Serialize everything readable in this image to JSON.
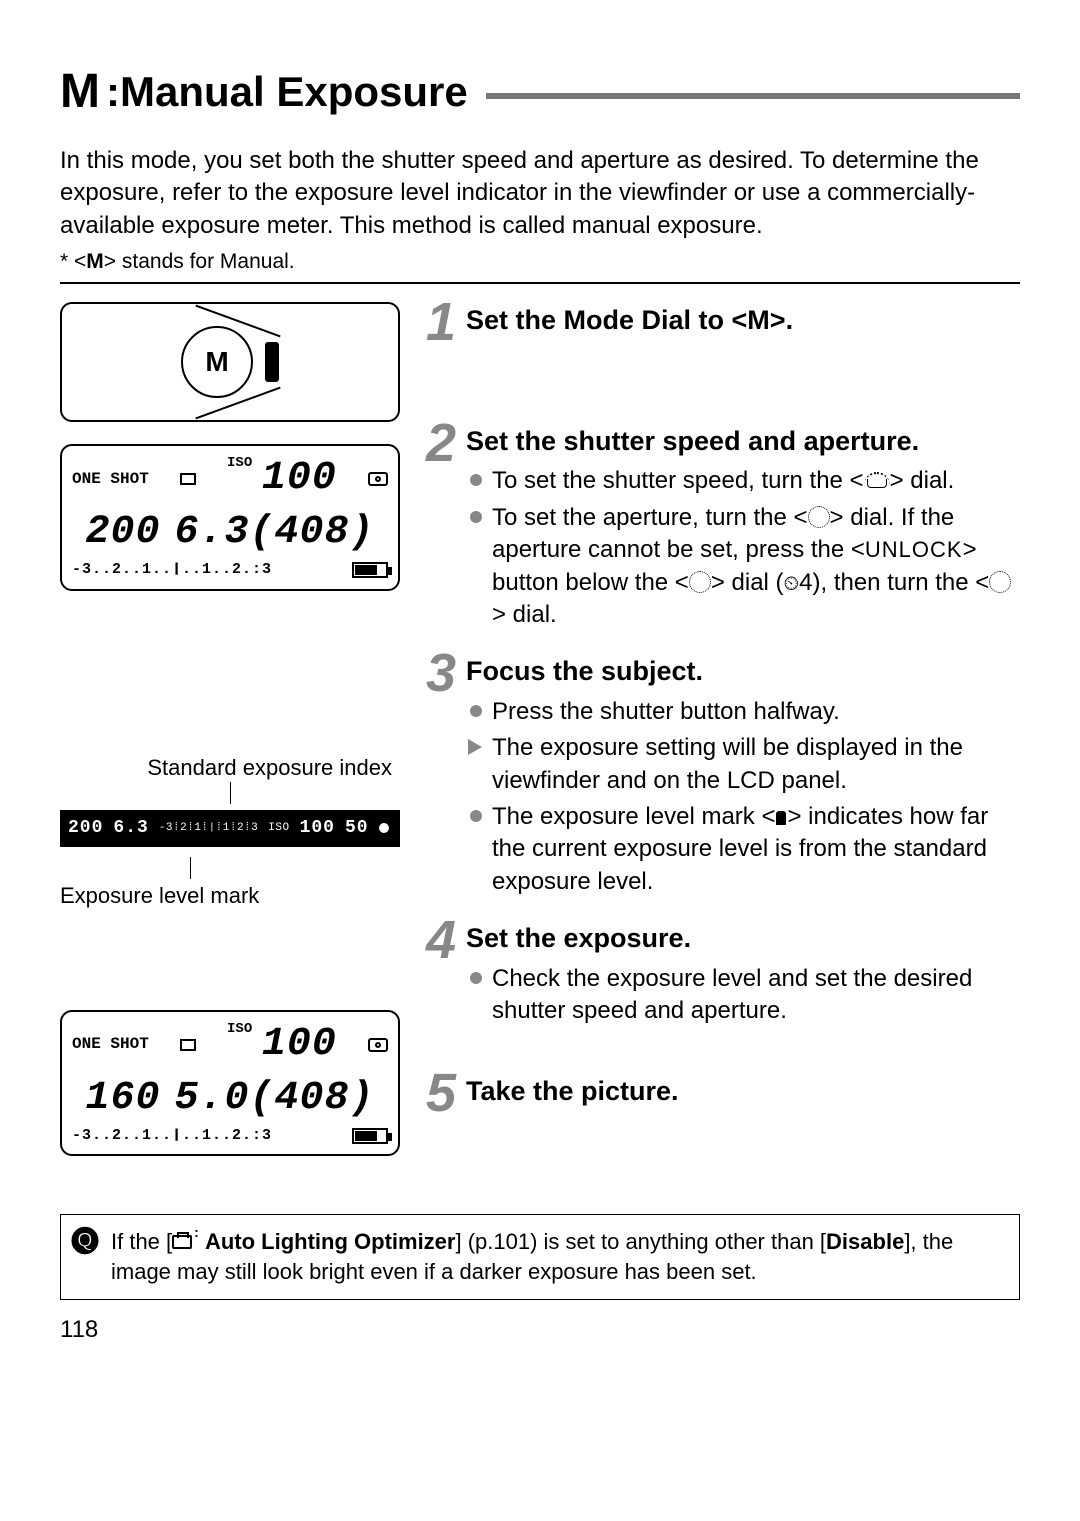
{
  "title": {
    "mode_symbol": "M",
    "separator": ": ",
    "text": "Manual Exposure"
  },
  "intro": "In this mode, you set both the shutter speed and aperture as desired. To determine the exposure, refer to the exposure level indicator in the viewfinder or use a commercially-available exposure meter. This method is called manual exposure.",
  "footnote": {
    "prefix": "* <",
    "symbol": "M",
    "suffix": "> stands for Manual."
  },
  "fig": {
    "dial_letter": "M",
    "lcd1": {
      "af_mode": "ONE SHOT",
      "iso_label": "ISO",
      "iso_value": "100",
      "shutter": "200",
      "aperture": "6.3",
      "shots": "408",
      "scale": "-3..2..1..❙..1..2.:3"
    },
    "viewfinder_strip": {
      "shutter": "200",
      "aperture": "6.3",
      "scale": "-3⁞2⁞1⁞❘⁞1⁞2⁞3",
      "iso_lbl": "ISO",
      "iso": "100",
      "count": "50"
    },
    "label_std_index": "Standard exposure index",
    "label_level_mark": "Exposure level mark",
    "lcd2": {
      "af_mode": "ONE SHOT",
      "iso_label": "ISO",
      "iso_value": "100",
      "shutter": "160",
      "aperture": "5.0",
      "shots": "408",
      "scale": "-3..2..1..❙..1..2.:3"
    }
  },
  "steps": [
    {
      "n": "1",
      "title_pre": "Set the Mode Dial to <",
      "title_sym": "M",
      "title_post": ">.",
      "items": []
    },
    {
      "n": "2",
      "title": "Set the shutter speed and aperture.",
      "items": [
        {
          "kind": "dot",
          "html": "To set the shutter speed, turn the <<span class='main-dial-icon' data-name='main-dial-icon' data-interactable='false'></span>> dial."
        },
        {
          "kind": "dot",
          "html": "To set the aperture, turn the <<span class='dial-icon' data-name='quick-dial-icon' data-interactable='false'></span>> dial. If the aperture cannot be set, press the <<span class='unlock'>UNLOCK</span>> button below the <<span class='dial-icon' data-name='quick-dial-icon' data-interactable='false'></span>> dial (<span class='timer-icon'>⏲</span>4), then turn the <<span class='dial-icon' data-name='quick-dial-icon' data-interactable='false'></span>> dial."
        }
      ]
    },
    {
      "n": "3",
      "title": "Focus the subject.",
      "items": [
        {
          "kind": "dot",
          "html": "Press the shutter button halfway."
        },
        {
          "kind": "tri",
          "html": "The exposure setting will be displayed in the viewfinder and on the LCD panel."
        },
        {
          "kind": "dot",
          "html": "The exposure level mark <<span class='index-mark' data-name='exposure-mark-icon' data-interactable='false'></span>> indicates how far the current exposure level is from the standard exposure level."
        }
      ]
    },
    {
      "n": "4",
      "title": "Set the exposure.",
      "items": [
        {
          "kind": "dot",
          "html": "Check the exposure level and set the desired shutter speed and aperture."
        }
      ]
    },
    {
      "n": "5",
      "title": "Take the picture.",
      "items": []
    }
  ],
  "note": {
    "pre": "If the [",
    "opt_label": "Auto Lighting Optimizer",
    "mid1": "] (p.101) is set to anything other than [",
    "disable": "Disable",
    "post": "], the image may still look bright even if a darker exposure has been set."
  },
  "page_number": "118"
}
